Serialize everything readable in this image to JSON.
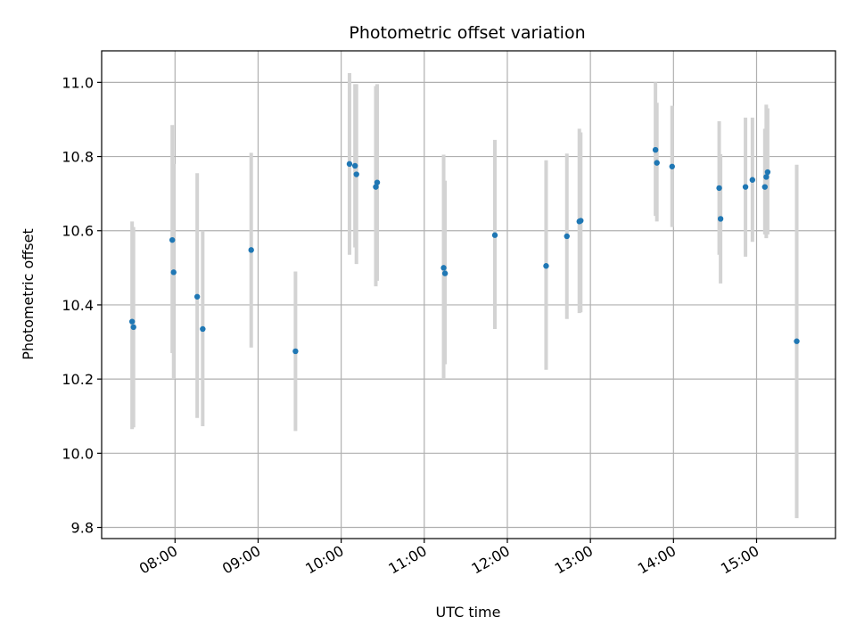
{
  "chart_data": {
    "type": "scatter",
    "title": "Photometric offset variation",
    "xlabel": "UTC time",
    "ylabel": "Photometric offset",
    "x_tick_labels": [
      "08:00",
      "09:00",
      "10:00",
      "11:00",
      "12:00",
      "13:00",
      "14:00",
      "15:00"
    ],
    "y_tick_labels": [
      "9.8",
      "10.0",
      "10.2",
      "10.4",
      "10.6",
      "10.8",
      "11.0"
    ],
    "x_ticks": [
      "08:00",
      "09:00",
      "10:00",
      "11:00",
      "12:00",
      "13:00",
      "14:00",
      "15:00"
    ],
    "y_ticks": [
      9.8,
      10.0,
      10.2,
      10.4,
      10.6,
      10.8,
      11.0
    ],
    "xlim": [
      "07:07",
      "15:57"
    ],
    "ylim": [
      9.77,
      11.085
    ],
    "grid": true,
    "colors": {
      "points": "#1f77b4",
      "errorbars": "#d3d3d3",
      "grid": "#b0b0b0"
    },
    "points": [
      {
        "x": "07:29",
        "y": 10.355,
        "ylo": 10.065,
        "yhi": 10.625
      },
      {
        "x": "07:30",
        "y": 10.34,
        "ylo": 10.07,
        "yhi": 10.61
      },
      {
        "x": "07:58",
        "y": 10.575,
        "ylo": 10.27,
        "yhi": 10.885
      },
      {
        "x": "07:59",
        "y": 10.488,
        "ylo": 10.2,
        "yhi": 10.78
      },
      {
        "x": "08:16",
        "y": 10.422,
        "ylo": 10.095,
        "yhi": 10.755
      },
      {
        "x": "08:20",
        "y": 10.335,
        "ylo": 10.073,
        "yhi": 10.6
      },
      {
        "x": "08:55",
        "y": 10.548,
        "ylo": 10.285,
        "yhi": 10.81
      },
      {
        "x": "09:27",
        "y": 10.275,
        "ylo": 10.06,
        "yhi": 10.49
      },
      {
        "x": "10:06",
        "y": 10.78,
        "ylo": 10.535,
        "yhi": 11.025
      },
      {
        "x": "10:10",
        "y": 10.775,
        "ylo": 10.555,
        "yhi": 10.995
      },
      {
        "x": "10:11",
        "y": 10.752,
        "ylo": 10.51,
        "yhi": 10.995
      },
      {
        "x": "10:26",
        "y": 10.73,
        "ylo": 10.465,
        "yhi": 10.995
      },
      {
        "x": "10:25",
        "y": 10.718,
        "ylo": 10.45,
        "yhi": 10.99
      },
      {
        "x": "11:14",
        "y": 10.5,
        "ylo": 10.2,
        "yhi": 10.805
      },
      {
        "x": "11:15",
        "y": 10.485,
        "ylo": 10.24,
        "yhi": 10.735
      },
      {
        "x": "11:51",
        "y": 10.588,
        "ylo": 10.335,
        "yhi": 10.845
      },
      {
        "x": "12:28",
        "y": 10.505,
        "ylo": 10.225,
        "yhi": 10.79
      },
      {
        "x": "12:43",
        "y": 10.585,
        "ylo": 10.362,
        "yhi": 10.808
      },
      {
        "x": "12:52",
        "y": 10.625,
        "ylo": 10.378,
        "yhi": 10.875
      },
      {
        "x": "12:53",
        "y": 10.627,
        "ylo": 10.38,
        "yhi": 10.865
      },
      {
        "x": "13:47",
        "y": 10.818,
        "ylo": 10.64,
        "yhi": 11.0
      },
      {
        "x": "13:48",
        "y": 10.783,
        "ylo": 10.625,
        "yhi": 10.945
      },
      {
        "x": "13:59",
        "y": 10.773,
        "ylo": 10.61,
        "yhi": 10.937
      },
      {
        "x": "14:33",
        "y": 10.715,
        "ylo": 10.535,
        "yhi": 10.895
      },
      {
        "x": "14:34",
        "y": 10.632,
        "ylo": 10.458,
        "yhi": 10.806
      },
      {
        "x": "14:52",
        "y": 10.718,
        "ylo": 10.53,
        "yhi": 10.905
      },
      {
        "x": "14:57",
        "y": 10.737,
        "ylo": 10.57,
        "yhi": 10.905
      },
      {
        "x": "15:06",
        "y": 10.718,
        "ylo": 10.59,
        "yhi": 10.875
      },
      {
        "x": "15:07",
        "y": 10.745,
        "ylo": 10.58,
        "yhi": 10.94
      },
      {
        "x": "15:08",
        "y": 10.758,
        "ylo": 10.59,
        "yhi": 10.93
      },
      {
        "x": "15:29",
        "y": 10.302,
        "ylo": 9.825,
        "yhi": 10.778
      }
    ]
  }
}
